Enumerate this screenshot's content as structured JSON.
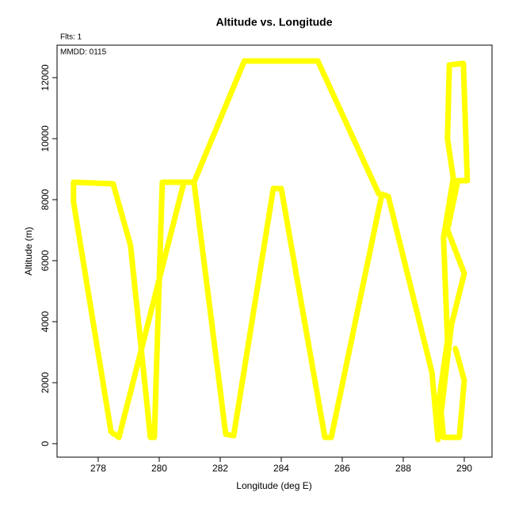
{
  "chart_data": {
    "type": "line",
    "title": "Altitude vs. Longitude",
    "xlabel": "Longitude (deg E)",
    "ylabel": "Altitude (m)",
    "annotations": [
      "Flts: 1",
      "MMDD: 0115"
    ],
    "xlim": [
      276.65,
      290.91
    ],
    "ylim": [
      -442,
      13065
    ],
    "xticks": [
      278,
      280,
      282,
      284,
      286,
      288,
      290
    ],
    "yticks": [
      0,
      2000,
      4000,
      6000,
      8000,
      10000,
      12000
    ],
    "series": [
      {
        "color": "#ffff00",
        "x": [
          287.2,
          285.2,
          282.79,
          281.14,
          280.81,
          278.68,
          278.42,
          277.19,
          277.19,
          278.49,
          279.06,
          279.71,
          279.84,
          280.1,
          281.14,
          282.18,
          282.44,
          283.74,
          284.0,
          285.43,
          285.64,
          287.3,
          287.51,
          288.94,
          289.14,
          289.58,
          290.0,
          289.45,
          289.79,
          290.1,
          289.97,
          289.51,
          289.45,
          289.64,
          289.32,
          289.45,
          289.19,
          289.32,
          289.84,
          290.0,
          289.71
        ],
        "values": [
          8182,
          12545,
          12545,
          8571,
          8571,
          208,
          390,
          7922,
          8571,
          8519,
          6494,
          208,
          208,
          8571,
          8571,
          312,
          260,
          8364,
          8364,
          208,
          208,
          8182,
          8104,
          2338,
          130,
          3896,
          5584,
          7013,
          8623,
          8623,
          12468,
          12416,
          10000,
          8701,
          6753,
          3377,
          1558,
          208,
          208,
          2078,
          3117
        ]
      }
    ]
  }
}
